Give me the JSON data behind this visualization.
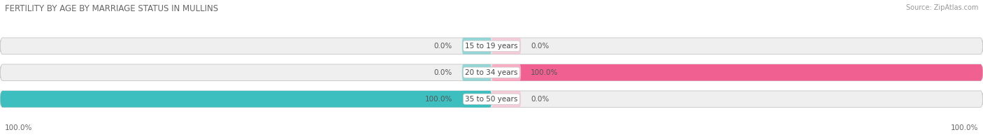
{
  "title": "FERTILITY BY AGE BY MARRIAGE STATUS IN MULLINS",
  "source": "Source: ZipAtlas.com",
  "categories": [
    "15 to 19 years",
    "20 to 34 years",
    "35 to 50 years"
  ],
  "married_values": [
    0.0,
    0.0,
    100.0
  ],
  "unmarried_values": [
    0.0,
    100.0,
    0.0
  ],
  "married_color": "#3dbfbf",
  "unmarried_color": "#f06090",
  "unmarried_color_light": "#f9adc5",
  "bar_bg_color": "#efefef",
  "bar_border_color": "#cccccc",
  "title_fontsize": 8.5,
  "label_fontsize": 7.5,
  "source_fontsize": 7.0,
  "bar_height": 0.62,
  "figure_bg": "#ffffff",
  "legend_married_color": "#3dbfbf",
  "legend_unmarried_color": "#f06090",
  "bottom_left_label": "100.0%",
  "bottom_right_label": "100.0%"
}
